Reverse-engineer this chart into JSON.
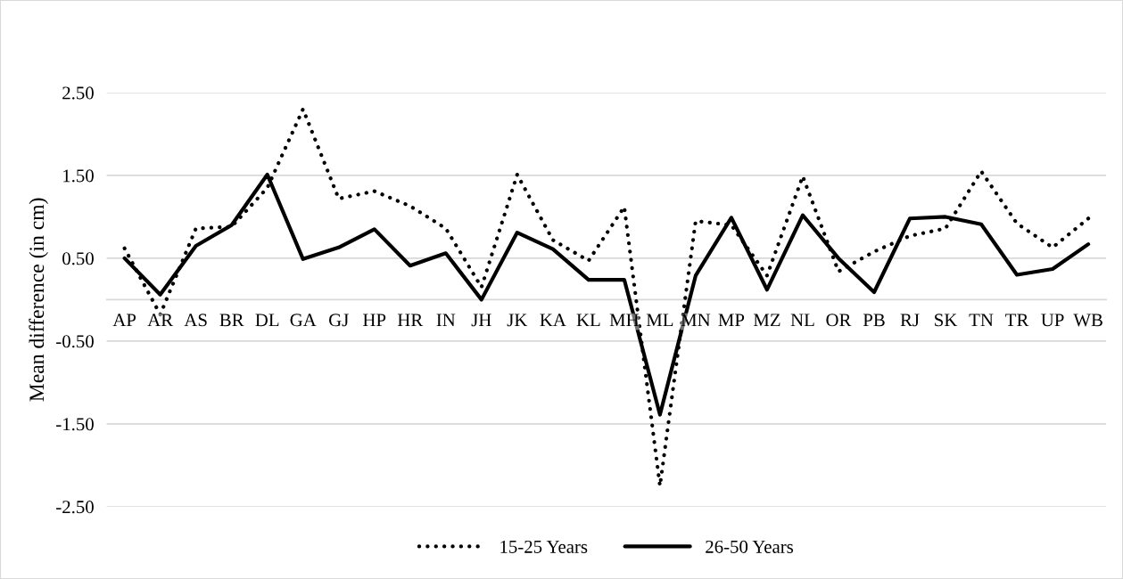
{
  "chart_data": {
    "type": "line",
    "ylabel": "Mean difference (in cm)",
    "categories": [
      "AP",
      "AR",
      "AS",
      "BR",
      "DL",
      "GA",
      "GJ",
      "HP",
      "HR",
      "IN",
      "JH",
      "JK",
      "KA",
      "KL",
      "MH",
      "ML",
      "MN",
      "MP",
      "MZ",
      "NL",
      "OR",
      "PB",
      "RJ",
      "SK",
      "TN",
      "TR",
      "UP",
      "WB"
    ],
    "series": [
      {
        "name": "15-25 Years",
        "color": "#000000",
        "line_style": "dotted",
        "values": [
          0.62,
          -0.18,
          0.86,
          0.88,
          1.35,
          2.3,
          1.22,
          1.31,
          1.13,
          0.86,
          0.15,
          1.51,
          0.72,
          0.47,
          1.12,
          -2.25,
          0.95,
          0.9,
          0.29,
          1.49,
          0.34,
          0.58,
          0.77,
          0.86,
          1.55,
          0.92,
          0.63,
          0.98
        ]
      },
      {
        "name": "26-50 Years",
        "color": "#000000",
        "line_style": "solid",
        "values": [
          0.5,
          0.06,
          0.65,
          0.9,
          1.51,
          0.49,
          0.63,
          0.85,
          0.41,
          0.56,
          0.0,
          0.81,
          0.61,
          0.24,
          0.24,
          -1.39,
          0.29,
          0.99,
          0.12,
          1.02,
          0.5,
          0.09,
          0.98,
          1.0,
          0.91,
          0.3,
          0.37,
          0.67
        ]
      }
    ],
    "ylim": [
      -2.5,
      2.5
    ],
    "yticks": [
      {
        "value": -2.5,
        "label": "-2.50"
      },
      {
        "value": -1.5,
        "label": "-1.50"
      },
      {
        "value": -0.5,
        "label": "-0.50"
      },
      {
        "value": 0.5,
        "label": "0.50"
      },
      {
        "value": 1.5,
        "label": "1.50"
      },
      {
        "value": 2.5,
        "label": "2.50"
      }
    ],
    "grid": "y",
    "legend": "bottom",
    "marker": "none"
  }
}
